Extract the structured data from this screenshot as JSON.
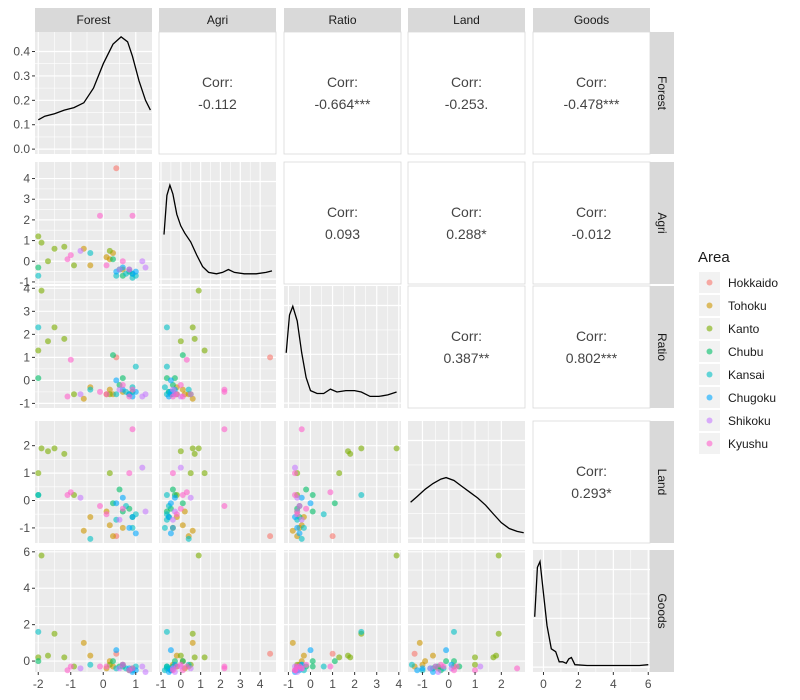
{
  "chart_data": {
    "type": "scatter-matrix",
    "variables": [
      "Forest",
      "Agri",
      "Ratio",
      "Land",
      "Goods"
    ],
    "axes": {
      "Forest": {
        "ticks": [
          -2,
          -1,
          0,
          1
        ],
        "lim": [
          -2.1,
          1.5
        ]
      },
      "Agri": {
        "ticks": [
          -1,
          0,
          1,
          2,
          3,
          4
        ],
        "lim": [
          -1.1,
          4.8
        ]
      },
      "Ratio": {
        "ticks": [
          -1,
          0,
          1,
          2,
          3,
          4
        ],
        "lim": [
          -1.2,
          4.1
        ]
      },
      "Land": {
        "ticks": [
          -1,
          0,
          1,
          2
        ],
        "lim": [
          -1.55,
          2.9
        ]
      },
      "Goods": {
        "ticks": [
          0,
          2,
          4,
          6
        ],
        "lim": [
          -0.6,
          6.1
        ]
      },
      "density_y": {
        "ticks": [
          0.0,
          0.1,
          0.2,
          0.3,
          0.4
        ],
        "lim": [
          -0.02,
          0.48
        ]
      }
    },
    "correlations": [
      {
        "pair": [
          "Forest",
          "Agri"
        ],
        "label": "Corr:",
        "value": "-0.112"
      },
      {
        "pair": [
          "Forest",
          "Ratio"
        ],
        "label": "Corr:",
        "value": "-0.664***"
      },
      {
        "pair": [
          "Forest",
          "Land"
        ],
        "label": "Corr:",
        "value": "-0.253."
      },
      {
        "pair": [
          "Forest",
          "Goods"
        ],
        "label": "Corr:",
        "value": "-0.478***"
      },
      {
        "pair": [
          "Agri",
          "Ratio"
        ],
        "label": "Corr:",
        "value": "0.093"
      },
      {
        "pair": [
          "Agri",
          "Land"
        ],
        "label": "Corr:",
        "value": "0.288*"
      },
      {
        "pair": [
          "Agri",
          "Goods"
        ],
        "label": "Corr:",
        "value": "-0.012"
      },
      {
        "pair": [
          "Ratio",
          "Land"
        ],
        "label": "Corr:",
        "value": "0.387**"
      },
      {
        "pair": [
          "Ratio",
          "Goods"
        ],
        "label": "Corr:",
        "value": "0.802***"
      },
      {
        "pair": [
          "Land",
          "Goods"
        ],
        "label": "Corr:",
        "value": "0.293*"
      }
    ],
    "densities": {
      "Forest": [
        [
          -2.0,
          0.12
        ],
        [
          -1.8,
          0.135
        ],
        [
          -1.5,
          0.145
        ],
        [
          -1.2,
          0.16
        ],
        [
          -0.9,
          0.17
        ],
        [
          -0.6,
          0.19
        ],
        [
          -0.3,
          0.25
        ],
        [
          0.0,
          0.35
        ],
        [
          0.3,
          0.43
        ],
        [
          0.55,
          0.46
        ],
        [
          0.75,
          0.44
        ],
        [
          0.9,
          0.38
        ],
        [
          1.1,
          0.28
        ],
        [
          1.3,
          0.2
        ],
        [
          1.45,
          0.16
        ]
      ],
      "Agri": [
        [
          -0.85,
          0.3
        ],
        [
          -0.7,
          0.57
        ],
        [
          -0.55,
          0.64
        ],
        [
          -0.4,
          0.58
        ],
        [
          -0.2,
          0.44
        ],
        [
          0.0,
          0.36
        ],
        [
          0.2,
          0.31
        ],
        [
          0.5,
          0.25
        ],
        [
          0.8,
          0.16
        ],
        [
          1.1,
          0.08
        ],
        [
          1.4,
          0.04
        ],
        [
          1.8,
          0.03
        ],
        [
          2.1,
          0.04
        ],
        [
          2.4,
          0.06
        ],
        [
          2.7,
          0.04
        ],
        [
          3.2,
          0.03
        ],
        [
          3.8,
          0.03
        ],
        [
          4.3,
          0.04
        ],
        [
          4.6,
          0.05
        ]
      ],
      "Ratio": [
        [
          -1.1,
          0.34
        ],
        [
          -0.95,
          0.6
        ],
        [
          -0.8,
          0.66
        ],
        [
          -0.6,
          0.56
        ],
        [
          -0.4,
          0.34
        ],
        [
          -0.2,
          0.17
        ],
        [
          0.0,
          0.08
        ],
        [
          0.3,
          0.06
        ],
        [
          0.6,
          0.06
        ],
        [
          0.9,
          0.09
        ],
        [
          1.2,
          0.07
        ],
        [
          1.6,
          0.08
        ],
        [
          2.0,
          0.08
        ],
        [
          2.3,
          0.07
        ],
        [
          2.7,
          0.04
        ],
        [
          3.1,
          0.04
        ],
        [
          3.5,
          0.05
        ],
        [
          3.9,
          0.07
        ]
      ],
      "Land": [
        [
          -1.45,
          0.24
        ],
        [
          -1.2,
          0.28
        ],
        [
          -0.9,
          0.33
        ],
        [
          -0.6,
          0.37
        ],
        [
          -0.3,
          0.4
        ],
        [
          -0.1,
          0.41
        ],
        [
          0.2,
          0.39
        ],
        [
          0.5,
          0.35
        ],
        [
          0.8,
          0.31
        ],
        [
          1.1,
          0.27
        ],
        [
          1.4,
          0.22
        ],
        [
          1.7,
          0.16
        ],
        [
          2.0,
          0.1
        ],
        [
          2.3,
          0.06
        ],
        [
          2.6,
          0.04
        ],
        [
          2.85,
          0.03
        ]
      ],
      "Goods": [
        [
          -0.5,
          0.34
        ],
        [
          -0.35,
          0.68
        ],
        [
          -0.2,
          0.72
        ],
        [
          0.0,
          0.5
        ],
        [
          0.2,
          0.28
        ],
        [
          0.45,
          0.12
        ],
        [
          0.7,
          0.1
        ],
        [
          0.9,
          0.03
        ],
        [
          1.1,
          0.03
        ],
        [
          1.3,
          0.02
        ],
        [
          1.45,
          0.05
        ],
        [
          1.6,
          0.06
        ],
        [
          1.8,
          0.01
        ],
        [
          2.5,
          0.005
        ],
        [
          3.5,
          0.005
        ],
        [
          4.5,
          0.005
        ],
        [
          5.5,
          0.005
        ],
        [
          6.0,
          0.01
        ]
      ]
    },
    "legend": {
      "title": "Area",
      "placement": "right",
      "entries": [
        {
          "name": "Hokkaido",
          "color": "#F8766D"
        },
        {
          "name": "Tohoku",
          "color": "#CD9600"
        },
        {
          "name": "Kanto",
          "color": "#7CAE00"
        },
        {
          "name": "Chubu",
          "color": "#00BE67"
        },
        {
          "name": "Kansai",
          "color": "#00BFC4"
        },
        {
          "name": "Chugoku",
          "color": "#00A9FF"
        },
        {
          "name": "Shikoku",
          "color": "#C77CFF"
        },
        {
          "name": "Kyushu",
          "color": "#FF61CC"
        }
      ]
    },
    "observations": [
      {
        "area": "Hokkaido",
        "Forest": 0.4,
        "Agri": 4.5,
        "Ratio": 1.0,
        "Land": -1.3,
        "Goods": 0.4
      },
      {
        "area": "Tohoku",
        "Forest": -0.6,
        "Agri": 0.6,
        "Ratio": -0.8,
        "Land": -1.1,
        "Goods": 1.0
      },
      {
        "area": "Tohoku",
        "Forest": -0.4,
        "Agri": -0.2,
        "Ratio": -0.3,
        "Land": -0.6,
        "Goods": 0.3
      },
      {
        "area": "Tohoku",
        "Forest": 0.3,
        "Agri": 0.4,
        "Ratio": -0.6,
        "Land": -1.3,
        "Goods": -0.3
      },
      {
        "area": "Tohoku",
        "Forest": 0.2,
        "Agri": 0.1,
        "Ratio": -0.4,
        "Land": -0.9,
        "Goods": 0.0
      },
      {
        "area": "Tohoku",
        "Forest": 0.6,
        "Agri": -0.4,
        "Ratio": -0.5,
        "Land": -1.0,
        "Goods": -0.2
      },
      {
        "area": "Tohoku",
        "Forest": 0.1,
        "Agri": 0.2,
        "Ratio": -0.6,
        "Land": -0.4,
        "Goods": -0.4
      },
      {
        "area": "Kanto",
        "Forest": -1.9,
        "Agri": 0.9,
        "Ratio": 3.9,
        "Land": 1.9,
        "Goods": 5.8
      },
      {
        "area": "Kanto",
        "Forest": -1.5,
        "Agri": 0.6,
        "Ratio": 2.3,
        "Land": 1.9,
        "Goods": 1.5
      },
      {
        "area": "Kanto",
        "Forest": -1.7,
        "Agri": 0.0,
        "Ratio": 1.7,
        "Land": 1.8,
        "Goods": 0.3
      },
      {
        "area": "Kanto",
        "Forest": -2.0,
        "Agri": 1.2,
        "Ratio": 1.3,
        "Land": 1.0,
        "Goods": 0.2
      },
      {
        "area": "Kanto",
        "Forest": -1.2,
        "Agri": 0.7,
        "Ratio": 1.8,
        "Land": 1.7,
        "Goods": 0.2
      },
      {
        "area": "Kanto",
        "Forest": -0.9,
        "Agri": -0.2,
        "Ratio": -0.6,
        "Land": 0.2,
        "Goods": -0.3
      },
      {
        "area": "Kanto",
        "Forest": 0.2,
        "Agri": 0.5,
        "Ratio": -0.6,
        "Land": 1.0,
        "Goods": -0.2
      },
      {
        "area": "Chubu",
        "Forest": -2.0,
        "Agri": -0.3,
        "Ratio": 0.1,
        "Land": 0.2,
        "Goods": 0.0
      },
      {
        "area": "Chubu",
        "Forest": 0.3,
        "Agri": 0.1,
        "Ratio": 1.1,
        "Land": -0.1,
        "Goods": 0.0
      },
      {
        "area": "Chubu",
        "Forest": 0.5,
        "Agri": -0.4,
        "Ratio": -0.2,
        "Land": 0.4,
        "Goods": -0.3
      },
      {
        "area": "Chubu",
        "Forest": 0.8,
        "Agri": -0.5,
        "Ratio": -0.6,
        "Land": -0.3,
        "Goods": -0.5
      },
      {
        "area": "Chubu",
        "Forest": 0.9,
        "Agri": -0.6,
        "Ratio": -0.5,
        "Land": -0.6,
        "Goods": -0.4
      },
      {
        "area": "Chubu",
        "Forest": 0.6,
        "Agri": -0.7,
        "Ratio": 0.1,
        "Land": -0.4,
        "Goods": -0.3
      },
      {
        "area": "Kansai",
        "Forest": -2.0,
        "Agri": -0.7,
        "Ratio": 2.3,
        "Land": 0.2,
        "Goods": 1.6
      },
      {
        "area": "Kansai",
        "Forest": -0.4,
        "Agri": 0.4,
        "Ratio": -0.4,
        "Land": -1.4,
        "Goods": -0.2
      },
      {
        "area": "Kansai",
        "Forest": 0.4,
        "Agri": -0.7,
        "Ratio": -0.6,
        "Land": -0.7,
        "Goods": -0.4
      },
      {
        "area": "Kansai",
        "Forest": 0.7,
        "Agri": -0.6,
        "Ratio": -0.5,
        "Land": -0.2,
        "Goods": -0.4
      },
      {
        "area": "Kansai",
        "Forest": 0.9,
        "Agri": -0.8,
        "Ratio": -0.3,
        "Land": -1.0,
        "Goods": -0.5
      },
      {
        "area": "Kansai",
        "Forest": 1.0,
        "Agri": -0.7,
        "Ratio": 0.6,
        "Land": -0.5,
        "Goods": -0.3
      },
      {
        "area": "Chugoku",
        "Forest": 0.4,
        "Agri": -0.5,
        "Ratio": 0.0,
        "Land": -0.1,
        "Goods": 0.6
      },
      {
        "area": "Chugoku",
        "Forest": 0.6,
        "Agri": -0.3,
        "Ratio": -0.4,
        "Land": 0.1,
        "Goods": -0.2
      },
      {
        "area": "Chugoku",
        "Forest": 0.8,
        "Agri": -0.4,
        "Ratio": -0.6,
        "Land": -1.0,
        "Goods": -0.4
      },
      {
        "area": "Chugoku",
        "Forest": 0.9,
        "Agri": -0.6,
        "Ratio": -0.7,
        "Land": -0.6,
        "Goods": -0.6
      },
      {
        "area": "Chugoku",
        "Forest": 1.0,
        "Agri": -0.5,
        "Ratio": -0.5,
        "Land": -1.2,
        "Goods": -0.5
      },
      {
        "area": "Shikoku",
        "Forest": -0.7,
        "Agri": 0.5,
        "Ratio": -0.6,
        "Land": 0.1,
        "Goods": -0.4
      },
      {
        "area": "Shikoku",
        "Forest": 0.5,
        "Agri": -0.4,
        "Ratio": -0.4,
        "Land": -0.7,
        "Goods": -0.4
      },
      {
        "area": "Shikoku",
        "Forest": 1.2,
        "Agri": 0.0,
        "Ratio": -0.7,
        "Land": 1.2,
        "Goods": -0.3
      },
      {
        "area": "Shikoku",
        "Forest": 1.3,
        "Agri": -0.3,
        "Ratio": -0.6,
        "Land": -0.4,
        "Goods": -0.6
      },
      {
        "area": "Kyushu",
        "Forest": -0.1,
        "Agri": 2.2,
        "Ratio": -0.5,
        "Land": -0.2,
        "Goods": -0.3
      },
      {
        "area": "Kyushu",
        "Forest": 0.9,
        "Agri": 2.2,
        "Ratio": -0.4,
        "Land": 2.6,
        "Goods": -0.4
      },
      {
        "area": "Kyushu",
        "Forest": -1.0,
        "Agri": 0.3,
        "Ratio": 0.9,
        "Land": 0.3,
        "Goods": -0.3
      },
      {
        "area": "Kyushu",
        "Forest": -1.1,
        "Agri": 0.1,
        "Ratio": -0.7,
        "Land": 0.2,
        "Goods": -0.5
      },
      {
        "area": "Kyushu",
        "Forest": 0.1,
        "Agri": -0.2,
        "Ratio": -0.6,
        "Land": -0.5,
        "Goods": -0.3
      },
      {
        "area": "Kyushu",
        "Forest": 0.8,
        "Agri": -0.4,
        "Ratio": -0.7,
        "Land": 1.0,
        "Goods": -0.5
      },
      {
        "area": "Kyushu",
        "Forest": 0.6,
        "Agri": 0.0,
        "Ratio": -0.2,
        "Land": -0.3,
        "Goods": -0.2
      }
    ]
  }
}
